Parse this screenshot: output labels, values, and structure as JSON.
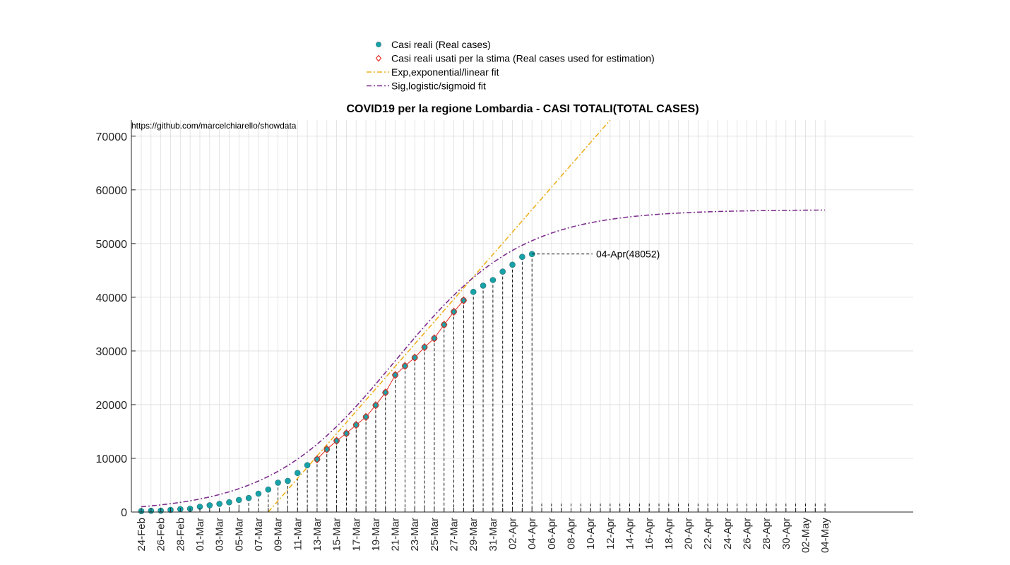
{
  "chart_data": {
    "type": "scatter",
    "title": "COVID19 per la regione Lombardia - CASI TOTALI(TOTAL CASES)",
    "source_note": "https://github.com/marcelchiarello/showdata",
    "xlabel": "",
    "ylabel": "",
    "xlim": [
      "24-Feb",
      "04-May"
    ],
    "ylim": [
      0,
      73000
    ],
    "y_ticks": [
      0,
      10000,
      20000,
      30000,
      40000,
      50000,
      60000,
      70000
    ],
    "x_tick_labels": [
      "24-Feb",
      "26-Feb",
      "28-Feb",
      "01-Mar",
      "03-Mar",
      "05-Mar",
      "07-Mar",
      "09-Mar",
      "11-Mar",
      "13-Mar",
      "15-Mar",
      "17-Mar",
      "19-Mar",
      "21-Mar",
      "23-Mar",
      "25-Mar",
      "27-Mar",
      "29-Mar",
      "31-Mar",
      "02-Apr",
      "04-Apr",
      "06-Apr",
      "08-Apr",
      "10-Apr",
      "12-Apr",
      "14-Apr",
      "16-Apr",
      "18-Apr",
      "20-Apr",
      "22-Apr",
      "24-Apr",
      "26-Apr",
      "28-Apr",
      "30-Apr",
      "02-May",
      "04-May"
    ],
    "grid": true,
    "legend_position": "top-center",
    "legend": [
      {
        "label": "Casi reali (Real cases)",
        "marker": "filled-circle",
        "color": "#17a2a8"
      },
      {
        "label": "Casi reali usati per la stima (Real cases used for estimation)",
        "marker": "diamond",
        "color": "#e0291d"
      },
      {
        "label": "Exp,exponential/linear fit",
        "marker": "dash-dot-line",
        "color": "#edb120"
      },
      {
        "label": "Sig,logistic/sigmoid fit",
        "marker": "dash-dot-line",
        "color": "#7e2f8e"
      }
    ],
    "series": [
      {
        "name": "Casi reali (Real cases)",
        "type": "scatter",
        "x_start": "24-Feb",
        "x_step_days": 1,
        "y": [
          172,
          240,
          258,
          403,
          531,
          615,
          984,
          1254,
          1520,
          1820,
          2251,
          2612,
          3420,
          4189,
          5469,
          5791,
          7280,
          8725,
          9820,
          11685,
          13272,
          14649,
          16220,
          17713,
          19884,
          22264,
          25515,
          27206,
          28761,
          30703,
          32346,
          34889,
          37298,
          39415,
          41007,
          42161,
          43208,
          44773,
          46065,
          47520,
          48052
        ]
      },
      {
        "name": "Casi reali usati per la stima (Real cases used for estimation)",
        "type": "scatter",
        "x_start": "13-Mar",
        "x_step_days": 1,
        "y": [
          9820,
          11685,
          13272,
          14649,
          16220,
          17713,
          19884,
          22264,
          25515,
          27206,
          28761,
          30703,
          32346,
          34889,
          37298,
          39415
        ]
      },
      {
        "name": "Exp,exponential/linear fit",
        "type": "line",
        "x": [
          "08-Mar",
          "12-Apr"
        ],
        "y": [
          0,
          73000
        ]
      },
      {
        "name": "Sig,logistic/sigmoid fit",
        "type": "line",
        "x_start": "24-Feb",
        "x_end": "04-May",
        "logistic": {
          "K": 56300,
          "midpoint_day": "21-Mar",
          "rate_per_day": 0.155
        }
      }
    ],
    "annotations": [
      {
        "text": "04-Apr(48052)",
        "x": "04-Apr",
        "y": 48052
      }
    ]
  },
  "colors": {
    "real": "#17a2a8",
    "estimation": "#e0291d",
    "exp_fit": "#edb120",
    "sig_fit": "#7e2f8e",
    "grid": "#dedede",
    "axis": "#262626"
  }
}
